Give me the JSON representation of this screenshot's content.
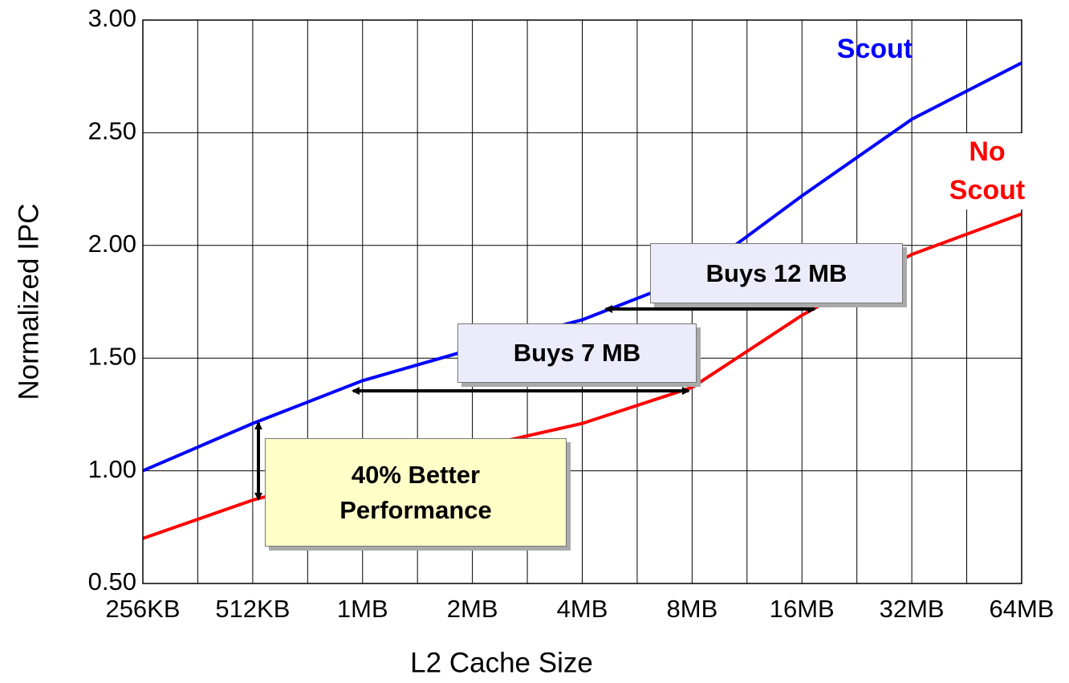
{
  "chart_data": {
    "type": "line",
    "x_label": "L2 Cache Size",
    "y_label": "Normalized IPC",
    "categories": [
      "256KB",
      "512KB",
      "1MB",
      "2MB",
      "4MB",
      "8MB",
      "16MB",
      "32MB",
      "64MB"
    ],
    "series": [
      {
        "name": "Scout",
        "color": "#0000ff",
        "values": [
          1.0,
          1.21,
          1.4,
          1.54,
          1.67,
          1.86,
          2.22,
          2.56,
          2.81
        ]
      },
      {
        "name": "No Scout",
        "color": "#ff0000",
        "values": [
          0.7,
          0.87,
          1.0,
          1.1,
          1.21,
          1.37,
          1.69,
          1.96,
          2.14
        ]
      }
    ],
    "ylim": [
      0.5,
      3.0
    ],
    "yticks": [
      {
        "value": 0.5,
        "label": "0.50"
      },
      {
        "value": 1.0,
        "label": "1.00"
      },
      {
        "value": 1.5,
        "label": "1.50"
      },
      {
        "value": 2.0,
        "label": "2.00"
      },
      {
        "value": 2.5,
        "label": "2.50"
      },
      {
        "value": 3.0,
        "label": "3.00"
      }
    ],
    "grid": true,
    "annotations": [
      "Buys 12 MB",
      "Buys 7 MB",
      "40% Better Performance"
    ]
  }
}
